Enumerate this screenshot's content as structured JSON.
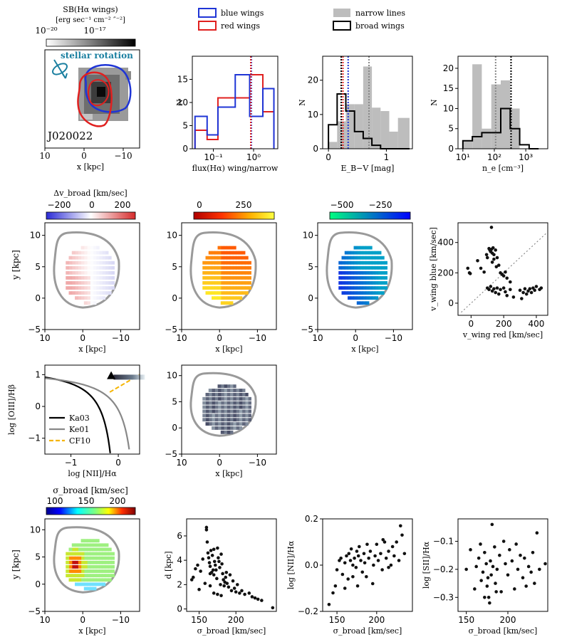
{
  "figure": {
    "galaxy_id": "J020022"
  },
  "colors": {
    "blue": "#1f35d6",
    "red": "#e0201f",
    "gray_fill": "#bdbdbd",
    "dot": "#111111",
    "contour": "#9a9a9a",
    "orange": "#f5b400"
  },
  "row1": {
    "sb_map": {
      "colorbar_label": "SB(Hα wings)",
      "colorbar_units": "[erg sec⁻¹ cm⁻² ″⁻²]",
      "tick_labels": [
        "10⁻²⁰",
        "10⁻¹⁷"
      ],
      "annotation": "stellar rotation",
      "galaxy_label": "J020022",
      "xlabel": "x [kpc]",
      "xticks": [
        "10",
        "0",
        "−10"
      ]
    },
    "legend_left": [
      "blue wings",
      "red wings"
    ],
    "legend_right": [
      "narrow lines",
      "broad wings"
    ]
  },
  "row2": {
    "colorbars": [
      {
        "label": "Δv_broad [km/sec]",
        "ticks": [
          "−200",
          "0",
          "200"
        ]
      },
      {
        "label": "",
        "ticks": [
          "0",
          "250"
        ]
      },
      {
        "label": "",
        "ticks": [
          "−500",
          "−250"
        ]
      }
    ],
    "ylabel": "y [kpc]",
    "xlabel": "x [kpc]",
    "map_xticks": [
      "10",
      "0",
      "−10"
    ],
    "map_yticks": [
      "10",
      "5",
      "0",
      "−5"
    ]
  },
  "row3": {
    "xlabel": "x [kpc]"
  },
  "row4": {
    "colorbar_label": "σ_broad [km/sec]",
    "colorbar_ticks": [
      "100",
      "150",
      "200"
    ],
    "xlabel": "x [kpc]",
    "ylabel": "y [kpc]"
  },
  "chart_data": [
    {
      "id": "flux_ratio_hist",
      "type": "bar",
      "xlabel": "flux(Hα) wing/narrow",
      "ylabel": "N",
      "xscale": "log",
      "xlim": [
        0.03,
        4
      ],
      "ylim": [
        0,
        20
      ],
      "xtick_labels": [
        "10⁻¹",
        "10⁰"
      ],
      "ytick_labels": [
        "0",
        "5",
        "10",
        "15"
      ],
      "bin_edges": [
        0.035,
        0.07,
        0.13,
        0.35,
        0.8,
        1.7,
        3.2
      ],
      "series": [
        {
          "name": "blue wings",
          "values": [
            7,
            3,
            9,
            16,
            7,
            13
          ]
        },
        {
          "name": "red wings",
          "values": [
            4,
            2,
            11,
            11,
            16,
            8
          ]
        }
      ],
      "vlines": [
        {
          "x": 0.88,
          "series": "blue wings"
        },
        {
          "x": 0.85,
          "series": "red wings"
        }
      ]
    },
    {
      "id": "ebv_hist",
      "type": "bar",
      "xlabel": "E_B−V [mag]",
      "ylabel": "N",
      "xlim": [
        -0.1,
        1.45
      ],
      "ylim": [
        0,
        27
      ],
      "xtick_labels": [
        "0",
        "1"
      ],
      "ytick_labels": [
        "0",
        "10",
        "20"
      ],
      "bin_edges": [
        0,
        0.15,
        0.3,
        0.45,
        0.6,
        0.75,
        0.9,
        1.05,
        1.2,
        1.4
      ],
      "series": [
        {
          "name": "narrow lines",
          "values": [
            2,
            8,
            13,
            13,
            24,
            12,
            11,
            5,
            9
          ]
        },
        {
          "name": "broad wings",
          "values": [
            7,
            16,
            11,
            5,
            3,
            1,
            0,
            0,
            0
          ]
        }
      ],
      "vlines": [
        {
          "x": 0.25,
          "series": "red wings"
        },
        {
          "x": 0.34,
          "series": "blue wings"
        },
        {
          "x": 0.22,
          "series": "broad wings"
        },
        {
          "x": 0.7,
          "series": "narrow lines"
        }
      ]
    },
    {
      "id": "ne_hist",
      "type": "bar",
      "xlabel": "n_e [cm⁻³]",
      "ylabel": "N",
      "xscale": "log",
      "xlim": [
        7,
        5000
      ],
      "ylim": [
        0,
        23
      ],
      "xtick_labels": [
        "10¹",
        "10²",
        "10³"
      ],
      "ytick_labels": [
        "0",
        "5",
        "10",
        "15",
        "20"
      ],
      "bin_edges": [
        10,
        20,
        40,
        80,
        160,
        320,
        640,
        1280,
        2560
      ],
      "series": [
        {
          "name": "narrow lines",
          "values": [
            2,
            21,
            5,
            16,
            17,
            10,
            0,
            0
          ]
        },
        {
          "name": "broad wings",
          "values": [
            2,
            3,
            4,
            4,
            10,
            5,
            1,
            0
          ]
        }
      ],
      "vlines": [
        {
          "x": 110,
          "series": "narrow lines"
        },
        {
          "x": 340,
          "series": "broad wings"
        }
      ]
    },
    {
      "id": "vwing_scatter",
      "type": "scatter",
      "xlabel": "v_wing red [km/sec]",
      "ylabel": "v_wing blue [km/sec]",
      "xlim": [
        -80,
        470
      ],
      "ylim": [
        -80,
        530
      ],
      "xtick_labels": [
        "0",
        "200",
        "400"
      ],
      "ytick_labels": [
        "0",
        "200",
        "400"
      ],
      "reference_line": "one-to-one",
      "points": [
        [
          -20,
          230
        ],
        [
          -10,
          200
        ],
        [
          -5,
          195
        ],
        [
          40,
          280
        ],
        [
          60,
          230
        ],
        [
          80,
          205
        ],
        [
          100,
          300
        ],
        [
          95,
          320
        ],
        [
          110,
          360
        ],
        [
          120,
          340
        ],
        [
          130,
          330
        ],
        [
          140,
          320
        ],
        [
          115,
          350
        ],
        [
          125,
          355
        ],
        [
          135,
          365
        ],
        [
          150,
          350
        ],
        [
          160,
          300
        ],
        [
          140,
          290
        ],
        [
          130,
          270
        ],
        [
          170,
          250
        ],
        [
          155,
          240
        ],
        [
          180,
          200
        ],
        [
          190,
          190
        ],
        [
          200,
          180
        ],
        [
          210,
          205
        ],
        [
          220,
          165
        ],
        [
          240,
          140
        ],
        [
          125,
          500
        ],
        [
          100,
          100
        ],
        [
          110,
          90
        ],
        [
          120,
          110
        ],
        [
          130,
          80
        ],
        [
          140,
          95
        ],
        [
          150,
          70
        ],
        [
          160,
          100
        ],
        [
          170,
          60
        ],
        [
          180,
          90
        ],
        [
          200,
          100
        ],
        [
          210,
          75
        ],
        [
          220,
          50
        ],
        [
          240,
          90
        ],
        [
          260,
          40
        ],
        [
          300,
          85
        ],
        [
          320,
          70
        ],
        [
          340,
          60
        ],
        [
          360,
          95
        ],
        [
          380,
          100
        ],
        [
          390,
          85
        ],
        [
          400,
          110
        ],
        [
          420,
          90
        ],
        [
          430,
          100
        ],
        [
          350,
          80
        ],
        [
          370,
          70
        ],
        [
          310,
          30
        ],
        [
          330,
          95
        ]
      ]
    },
    {
      "id": "bpt_diagram",
      "type": "line",
      "xlabel": "log [NII]/Hα",
      "ylabel": "log [OIII]/Hβ",
      "xlim": [
        -1.55,
        0.45
      ],
      "ylim": [
        -1.5,
        1.3
      ],
      "xtick_labels": [
        "−1",
        "0"
      ],
      "ytick_labels": [
        "−1",
        "0",
        "1"
      ],
      "legend": [
        "Ka03",
        "Ke01",
        "CF10"
      ],
      "marker": {
        "x": -0.15,
        "y": 0.95,
        "shape": "triangle"
      }
    },
    {
      "id": "sigma_vs_d",
      "type": "scatter",
      "xlabel": "σ_broad [km/sec]",
      "ylabel": "d [kpc]",
      "xlim": [
        133,
        255
      ],
      "ylim": [
        -0.2,
        7.4
      ],
      "xtick_labels": [
        "150",
        "200"
      ],
      "ytick_labels": [
        "0",
        "2",
        "4",
        "6"
      ],
      "points": [
        [
          140,
          2.4
        ],
        [
          142,
          2.6
        ],
        [
          145,
          3.3
        ],
        [
          148,
          3.6
        ],
        [
          150,
          1.6
        ],
        [
          152,
          3.1
        ],
        [
          155,
          4.1
        ],
        [
          158,
          2.1
        ],
        [
          160,
          6.5
        ],
        [
          160,
          6.7
        ],
        [
          161,
          5.5
        ],
        [
          162,
          4.6
        ],
        [
          163,
          4.2
        ],
        [
          164,
          3.8
        ],
        [
          165,
          3.5
        ],
        [
          165,
          2.9
        ],
        [
          166,
          4.8
        ],
        [
          167,
          3.0
        ],
        [
          168,
          4.4
        ],
        [
          169,
          3.2
        ],
        [
          170,
          2.8
        ],
        [
          170,
          4.9
        ],
        [
          171,
          3.9
        ],
        [
          172,
          3.6
        ],
        [
          173,
          3.2
        ],
        [
          174,
          2.5
        ],
        [
          175,
          5.0
        ],
        [
          176,
          4.2
        ],
        [
          177,
          3.9
        ],
        [
          178,
          3.4
        ],
        [
          179,
          2.0
        ],
        [
          180,
          4.5
        ],
        [
          181,
          3.7
        ],
        [
          182,
          2.9
        ],
        [
          183,
          2.4
        ],
        [
          184,
          1.9
        ],
        [
          185,
          2.2
        ],
        [
          186,
          2.6
        ],
        [
          187,
          3.0
        ],
        [
          188,
          2.1
        ],
        [
          190,
          1.8
        ],
        [
          192,
          2.8
        ],
        [
          194,
          1.5
        ],
        [
          196,
          2.3
        ],
        [
          198,
          1.7
        ],
        [
          200,
          1.4
        ],
        [
          202,
          2.0
        ],
        [
          205,
          1.3
        ],
        [
          208,
          1.5
        ],
        [
          212,
          1.2
        ],
        [
          218,
          1.3
        ],
        [
          222,
          1.0
        ],
        [
          226,
          0.9
        ],
        [
          230,
          0.8
        ],
        [
          235,
          0.7
        ],
        [
          250,
          0.1
        ],
        [
          170,
          1.3
        ],
        [
          175,
          1.2
        ],
        [
          180,
          1.1
        ],
        [
          165,
          1.9
        ]
      ]
    },
    {
      "id": "sigma_vs_nii",
      "type": "scatter",
      "xlabel": "σ_broad [km/sec]",
      "ylabel": "log [NII]/Hα",
      "xlim": [
        132,
        245
      ],
      "ylim": [
        -0.2,
        0.2
      ],
      "xtick_labels": [
        "150",
        "200"
      ],
      "ytick_labels": [
        "−0.2",
        "0.0",
        "0.2"
      ],
      "points": [
        [
          140,
          -0.17
        ],
        [
          145,
          -0.12
        ],
        [
          148,
          -0.09
        ],
        [
          150,
          -0.02
        ],
        [
          153,
          0.02
        ],
        [
          155,
          0.03
        ],
        [
          157,
          -0.04
        ],
        [
          160,
          0.01
        ],
        [
          162,
          0.04
        ],
        [
          164,
          -0.06
        ],
        [
          165,
          0.05
        ],
        [
          167,
          0.02
        ],
        [
          168,
          0.07
        ],
        [
          170,
          0.0
        ],
        [
          172,
          0.03
        ],
        [
          174,
          -0.01
        ],
        [
          175,
          0.06
        ],
        [
          177,
          0.04
        ],
        [
          178,
          0.08
        ],
        [
          180,
          0.02
        ],
        [
          182,
          -0.03
        ],
        [
          184,
          0.05
        ],
        [
          185,
          0.01
        ],
        [
          187,
          -0.05
        ],
        [
          190,
          0.03
        ],
        [
          192,
          0.06
        ],
        [
          195,
          -0.08
        ],
        [
          198,
          0.04
        ],
        [
          200,
          0.09
        ],
        [
          202,
          0.02
        ],
        [
          205,
          0.05
        ],
        [
          207,
          -0.02
        ],
        [
          210,
          0.1
        ],
        [
          212,
          0.03
        ],
        [
          215,
          0.06
        ],
        [
          218,
          0.0
        ],
        [
          220,
          0.08
        ],
        [
          222,
          0.04
        ],
        [
          225,
          0.1
        ],
        [
          228,
          0.02
        ],
        [
          230,
          0.17
        ],
        [
          232,
          0.13
        ],
        [
          235,
          0.05
        ],
        [
          170,
          -0.05
        ],
        [
          176,
          -0.09
        ],
        [
          160,
          -0.1
        ],
        [
          188,
          0.09
        ],
        [
          196,
          0.0
        ],
        [
          208,
          0.11
        ],
        [
          215,
          -0.01
        ]
      ]
    },
    {
      "id": "sigma_vs_sii",
      "type": "scatter",
      "xlabel": "σ_broad [km/sec]",
      "ylabel": "log [SII]/Hα",
      "xlim": [
        140,
        248
      ],
      "ylim": [
        -0.35,
        -0.02
      ],
      "xtick_labels": [
        "150",
        "200"
      ],
      "ytick_labels": [
        "−0.3",
        "−0.2",
        "−0.1"
      ],
      "points": [
        [
          150,
          -0.2
        ],
        [
          155,
          -0.13
        ],
        [
          160,
          -0.27
        ],
        [
          162,
          -0.19
        ],
        [
          165,
          -0.16
        ],
        [
          167,
          -0.11
        ],
        [
          168,
          -0.24
        ],
        [
          170,
          -0.21
        ],
        [
          172,
          -0.14
        ],
        [
          174,
          -0.18
        ],
        [
          175,
          -0.26
        ],
        [
          176,
          -0.23
        ],
        [
          177,
          -0.3
        ],
        [
          178,
          -0.32
        ],
        [
          179,
          -0.17
        ],
        [
          180,
          -0.22
        ],
        [
          181,
          -0.04
        ],
        [
          182,
          -0.19
        ],
        [
          184,
          -0.12
        ],
        [
          185,
          -0.25
        ],
        [
          187,
          -0.2
        ],
        [
          190,
          -0.15
        ],
        [
          192,
          -0.28
        ],
        [
          195,
          -0.1
        ],
        [
          197,
          -0.18
        ],
        [
          200,
          -0.22
        ],
        [
          202,
          -0.13
        ],
        [
          205,
          -0.17
        ],
        [
          208,
          -0.27
        ],
        [
          210,
          -0.11
        ],
        [
          212,
          -0.2
        ],
        [
          215,
          -0.15
        ],
        [
          218,
          -0.23
        ],
        [
          220,
          -0.16
        ],
        [
          222,
          -0.26
        ],
        [
          225,
          -0.19
        ],
        [
          228,
          -0.21
        ],
        [
          230,
          -0.14
        ],
        [
          232,
          -0.25
        ],
        [
          235,
          -0.07
        ],
        [
          238,
          -0.2
        ],
        [
          245,
          -0.18
        ],
        [
          172,
          -0.3
        ],
        [
          186,
          -0.28
        ]
      ]
    }
  ]
}
